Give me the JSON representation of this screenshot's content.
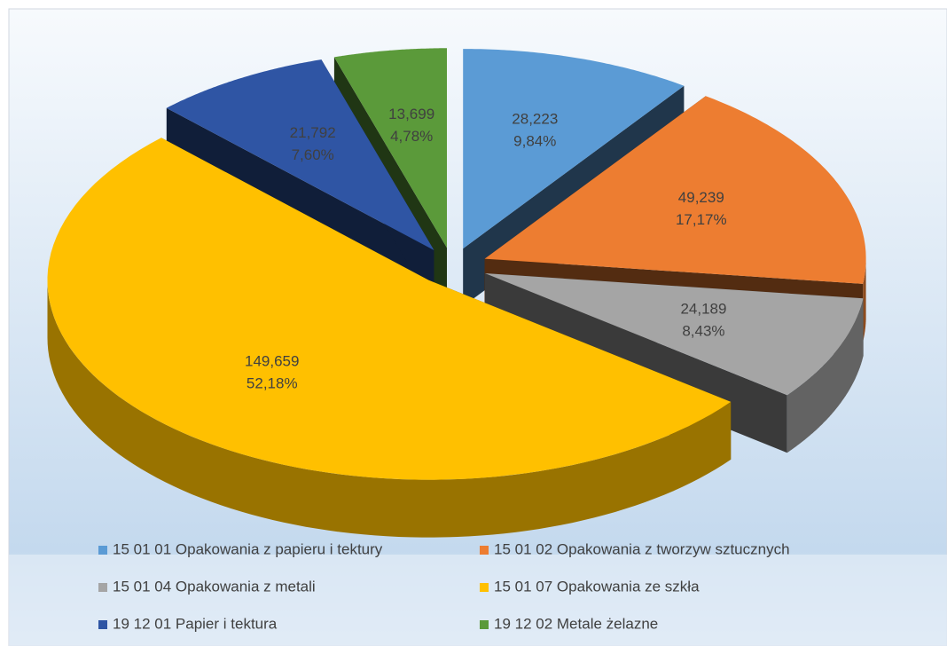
{
  "chart_data": {
    "type": "pie3d",
    "categories": [
      "15 01 01 Opakowania z papieru i tektury",
      "15 01 02 Opakowania z tworzyw sztucznych",
      "15 01 04 Opakowania z metali",
      "15 01 07 Opakowania ze szkła",
      "19 12 01 Papier i tektura",
      "19 12 02 Metale żelazne"
    ],
    "values": [
      28.223,
      49.239,
      24.189,
      149.659,
      21.792,
      13.699
    ],
    "value_labels": [
      "28,223",
      "49,239",
      "24,189",
      "149,659",
      "21,792",
      "13,699"
    ],
    "percents": [
      9.84,
      17.17,
      8.43,
      52.18,
      7.6,
      4.78
    ],
    "percent_labels": [
      "9,84%",
      "17,17%",
      "8,43%",
      "52,18%",
      "7,60%",
      "4,78%"
    ],
    "colors": [
      "#5b9bd5",
      "#ed7d31",
      "#a5a5a5",
      "#ffc000",
      "#2f55a4",
      "#5b9a3a"
    ],
    "legend": "bottom"
  }
}
